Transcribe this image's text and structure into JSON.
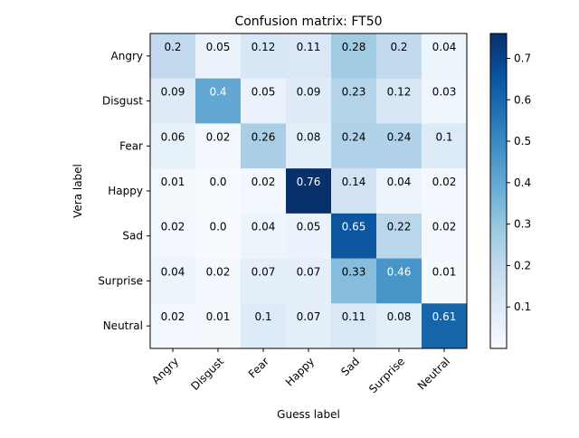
{
  "chart_data": {
    "type": "heatmap",
    "title": "Confusion matrix: FT50",
    "xlabel": "Guess label",
    "ylabel": "Vera label",
    "x_categories": [
      "Angry",
      "Disgust",
      "Fear",
      "Happy",
      "Sad",
      "Surprise",
      "Neutral"
    ],
    "y_categories": [
      "Angry",
      "Disgust",
      "Fear",
      "Happy",
      "Sad",
      "Surprise",
      "Neutral"
    ],
    "values": [
      [
        0.2,
        0.05,
        0.12,
        0.11,
        0.28,
        0.2,
        0.04
      ],
      [
        0.09,
        0.4,
        0.05,
        0.09,
        0.23,
        0.12,
        0.03
      ],
      [
        0.06,
        0.02,
        0.26,
        0.08,
        0.24,
        0.24,
        0.1
      ],
      [
        0.01,
        0.0,
        0.02,
        0.76,
        0.14,
        0.04,
        0.02
      ],
      [
        0.02,
        0.0,
        0.04,
        0.05,
        0.65,
        0.22,
        0.02
      ],
      [
        0.04,
        0.02,
        0.07,
        0.07,
        0.33,
        0.46,
        0.01
      ],
      [
        0.02,
        0.01,
        0.1,
        0.07,
        0.11,
        0.08,
        0.61
      ]
    ],
    "cell_labels": [
      [
        "0.2",
        "0.05",
        "0.12",
        "0.11",
        "0.28",
        "0.2",
        "0.04"
      ],
      [
        "0.09",
        "0.4",
        "0.05",
        "0.09",
        "0.23",
        "0.12",
        "0.03"
      ],
      [
        "0.06",
        "0.02",
        "0.26",
        "0.08",
        "0.24",
        "0.24",
        "0.1"
      ],
      [
        "0.01",
        "0.0",
        "0.02",
        "0.76",
        "0.14",
        "0.04",
        "0.02"
      ],
      [
        "0.02",
        "0.0",
        "0.04",
        "0.05",
        "0.65",
        "0.22",
        "0.02"
      ],
      [
        "0.04",
        "0.02",
        "0.07",
        "0.07",
        "0.33",
        "0.46",
        "0.01"
      ],
      [
        "0.02",
        "0.01",
        "0.1",
        "0.07",
        "0.11",
        "0.08",
        "0.61"
      ]
    ],
    "colormap": "Blues",
    "color_range": [
      0.0,
      0.76
    ],
    "colorbar_ticks": [
      "0.1",
      "0.2",
      "0.3",
      "0.4",
      "0.5",
      "0.6",
      "0.7"
    ],
    "colorbar_tick_values": [
      0.1,
      0.2,
      0.3,
      0.4,
      0.5,
      0.6,
      0.7
    ],
    "grid": false,
    "legend": "none",
    "colorbar_position": "right"
  }
}
